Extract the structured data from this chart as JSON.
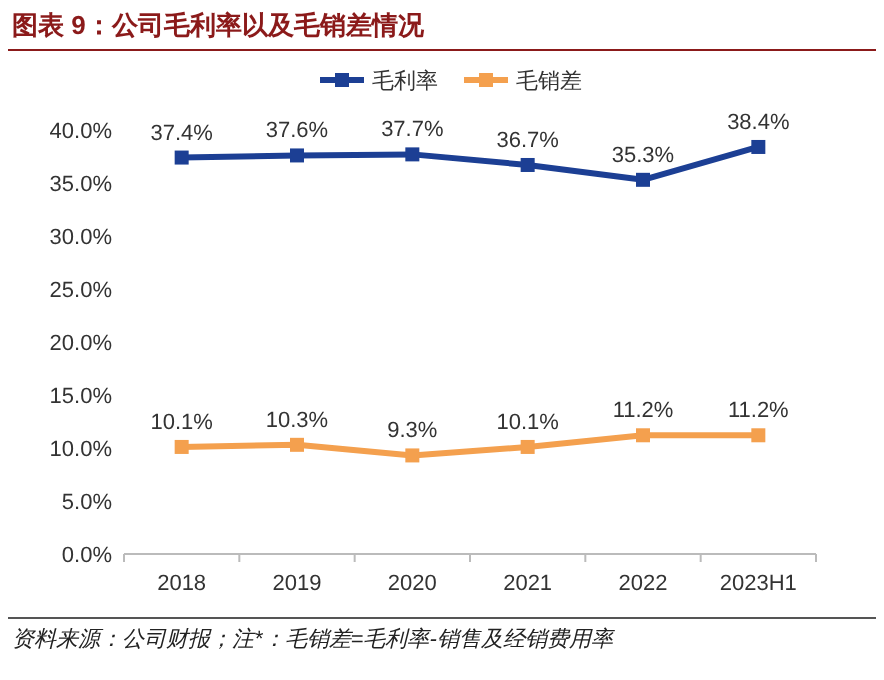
{
  "chart_data": {
    "type": "line",
    "title": "图表 9：公司毛利率以及毛销差情况",
    "categories": [
      "2018",
      "2019",
      "2020",
      "2021",
      "2022",
      "2023H1"
    ],
    "series": [
      {
        "name": "毛利率",
        "color": "#1c3f94",
        "values": [
          37.4,
          37.6,
          37.7,
          36.7,
          35.3,
          38.4
        ],
        "value_labels": [
          "37.4%",
          "37.6%",
          "37.7%",
          "36.7%",
          "35.3%",
          "38.4%"
        ]
      },
      {
        "name": "毛销差",
        "color": "#f4a04e",
        "values": [
          10.1,
          10.3,
          9.3,
          10.1,
          11.2,
          11.2
        ],
        "value_labels": [
          "10.1%",
          "10.3%",
          "9.3%",
          "10.1%",
          "11.2%",
          "11.2%"
        ]
      }
    ],
    "ylim": [
      0,
      40
    ],
    "yticks": [
      {
        "value": 0,
        "label": "0.0%"
      },
      {
        "value": 5,
        "label": "5.0%"
      },
      {
        "value": 10,
        "label": "10.0%"
      },
      {
        "value": 15,
        "label": "15.0%"
      },
      {
        "value": 20,
        "label": "20.0%"
      },
      {
        "value": 25,
        "label": "25.0%"
      },
      {
        "value": 30,
        "label": "30.0%"
      },
      {
        "value": 35,
        "label": "35.0%"
      },
      {
        "value": 40,
        "label": "40.0%"
      }
    ],
    "grid": false,
    "legend": "top",
    "marker": "square",
    "line_style": "solid",
    "annotations": [
      "资料来源：公司财报；注*：毛销差=毛利率-销售及经销费用率"
    ]
  }
}
